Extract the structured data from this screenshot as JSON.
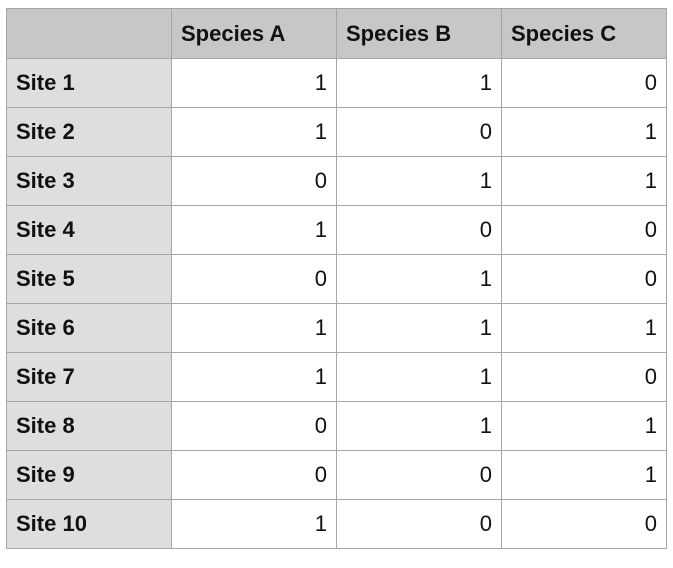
{
  "table": {
    "columns": [
      "Species A",
      "Species B",
      "Species C"
    ],
    "rows": [
      {
        "label": "Site 1",
        "values": [
          1,
          1,
          0
        ]
      },
      {
        "label": "Site 2",
        "values": [
          1,
          0,
          1
        ]
      },
      {
        "label": "Site 3",
        "values": [
          0,
          1,
          1
        ]
      },
      {
        "label": "Site 4",
        "values": [
          1,
          0,
          0
        ]
      },
      {
        "label": "Site 5",
        "values": [
          0,
          1,
          0
        ]
      },
      {
        "label": "Site 6",
        "values": [
          1,
          1,
          1
        ]
      },
      {
        "label": "Site 7",
        "values": [
          1,
          1,
          0
        ]
      },
      {
        "label": "Site 8",
        "values": [
          0,
          1,
          1
        ]
      },
      {
        "label": "Site 9",
        "values": [
          0,
          0,
          1
        ]
      },
      {
        "label": "Site 10",
        "values": [
          1,
          0,
          0
        ]
      }
    ]
  }
}
